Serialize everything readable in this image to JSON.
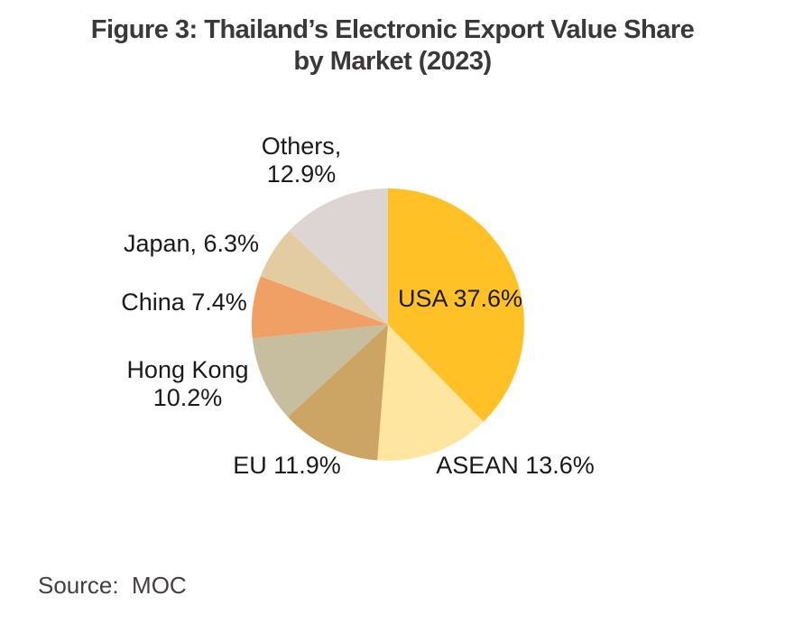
{
  "title": {
    "line1": "Figure 3: Thailand’s Electronic Export Value Share",
    "line2": "by Market (2023)"
  },
  "source": "Source:  MOC",
  "chart_data": {
    "type": "pie",
    "title": "Figure 3: Thailand’s Electronic Export Value Share by Market (2023)",
    "unit": "percent",
    "start_angle_deg": 0,
    "direction": "clockwise",
    "slices": [
      {
        "label": "USA",
        "value": 37.6,
        "color": "#FFC125"
      },
      {
        "label": "ASEAN",
        "value": 13.6,
        "color": "#FFE6A0"
      },
      {
        "label": "EU",
        "value": 11.9,
        "color": "#CCA564"
      },
      {
        "label": "Hong Kong",
        "value": 10.2,
        "color": "#C6BE9E"
      },
      {
        "label": "China",
        "value": 7.4,
        "color": "#F0A064"
      },
      {
        "label": "Japan",
        "value": 6.3,
        "color": "#E3CBA2"
      },
      {
        "label": "Others",
        "value": 12.9,
        "color": "#DDD4D4"
      }
    ]
  },
  "labels": {
    "usa": "USA 37.6%",
    "asean": "ASEAN 13.6%",
    "eu": "EU 11.9%",
    "hong_kong_line1": "Hong Kong",
    "hong_kong_line2": "10.2%",
    "china": "China 7.4%",
    "japan": "Japan, 6.3%",
    "others_line1": "Others,",
    "others_line2": "12.9%"
  },
  "colors": {
    "title_text": "#3B3838",
    "label_text": "#1A1A1A",
    "source_text": "#443F3F",
    "background": "#FFFFFF"
  }
}
